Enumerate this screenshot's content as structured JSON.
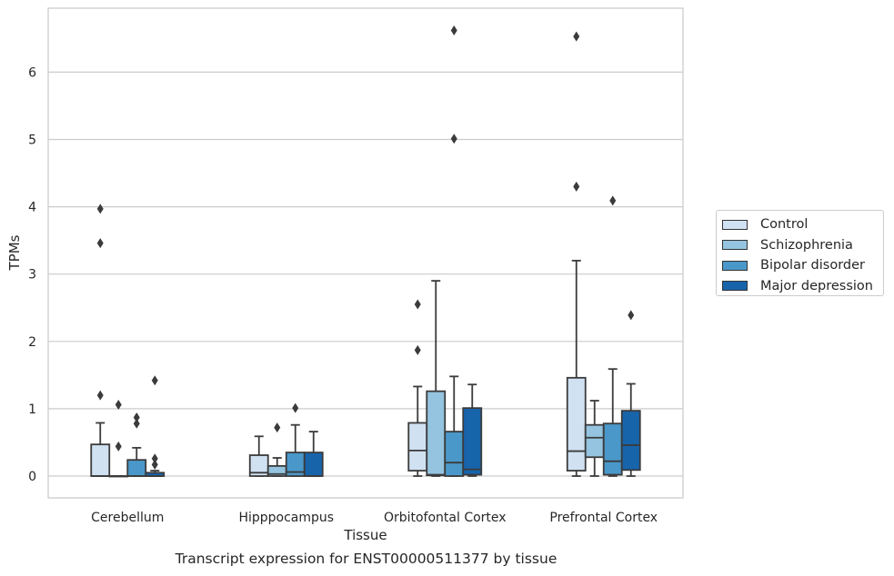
{
  "caption": "Transcript expression for ENST00000511377 by tissue",
  "chart_data": {
    "type": "boxplot",
    "xlabel": "Tissue",
    "ylabel": "TPMs",
    "ylim": [
      -0.32,
      6.95
    ],
    "yticks": [
      0,
      1,
      2,
      3,
      4,
      5,
      6
    ],
    "categories": [
      "Cerebellum",
      "Hipppocampus",
      "Orbitofontal Cortex",
      "Prefrontal Cortex"
    ],
    "grid": true,
    "legend_position": "right",
    "series": [
      {
        "name": "Control",
        "color": "#d0e1f2",
        "boxes": [
          {
            "whislo": 0,
            "q1": 0,
            "med": 0,
            "q3": 0.47,
            "whishi": 0.79,
            "fliers": [
              1.2,
              3.46,
              3.97
            ]
          },
          {
            "whislo": 0,
            "q1": 0,
            "med": 0.05,
            "q3": 0.31,
            "whishi": 0.59,
            "fliers": []
          },
          {
            "whislo": 0,
            "q1": 0.08,
            "med": 0.38,
            "q3": 0.79,
            "whishi": 1.33,
            "fliers": [
              1.87,
              2.55
            ]
          },
          {
            "whislo": 0,
            "q1": 0.08,
            "med": 0.37,
            "q3": 1.46,
            "whishi": 3.2,
            "fliers": [
              4.3,
              6.53
            ]
          }
        ]
      },
      {
        "name": "Schizophrenia",
        "color": "#94c4df",
        "boxes": [
          {
            "whislo": 0,
            "q1": 0,
            "med": 0,
            "q3": 0,
            "whishi": 0,
            "fliers": [
              0.44,
              1.06
            ]
          },
          {
            "whislo": 0,
            "q1": 0,
            "med": 0.03,
            "q3": 0.15,
            "whishi": 0.27,
            "fliers": [
              0.72
            ]
          },
          {
            "whislo": 0,
            "q1": 0.01,
            "med": 0.02,
            "q3": 1.26,
            "whishi": 2.9,
            "fliers": []
          },
          {
            "whislo": 0,
            "q1": 0.28,
            "med": 0.57,
            "q3": 0.76,
            "whishi": 1.12,
            "fliers": []
          }
        ]
      },
      {
        "name": "Bipolar disorder",
        "color": "#4a98c9",
        "boxes": [
          {
            "whislo": 0,
            "q1": 0,
            "med": 0,
            "q3": 0.24,
            "whishi": 0.42,
            "fliers": [
              0.78,
              0.87
            ]
          },
          {
            "whislo": 0,
            "q1": 0,
            "med": 0.06,
            "q3": 0.35,
            "whishi": 0.76,
            "fliers": [
              1.01
            ]
          },
          {
            "whislo": 0,
            "q1": 0,
            "med": 0.2,
            "q3": 0.66,
            "whishi": 1.48,
            "fliers": [
              5.01,
              6.62
            ]
          },
          {
            "whislo": 0,
            "q1": 0.02,
            "med": 0.22,
            "q3": 0.78,
            "whishi": 1.59,
            "fliers": [
              4.09
            ]
          }
        ]
      },
      {
        "name": "Major depression",
        "color": "#1764ab",
        "boxes": [
          {
            "whislo": 0,
            "q1": 0,
            "med": 0,
            "q3": 0.05,
            "whishi": 0.08,
            "fliers": [
              0.17,
              0.26,
              1.42
            ]
          },
          {
            "whislo": 0,
            "q1": 0,
            "med": 0,
            "q3": 0.35,
            "whishi": 0.66,
            "fliers": []
          },
          {
            "whislo": 0,
            "q1": 0.02,
            "med": 0.1,
            "q3": 1.01,
            "whishi": 1.36,
            "fliers": []
          },
          {
            "whislo": 0,
            "q1": 0.09,
            "med": 0.46,
            "q3": 0.97,
            "whishi": 1.37,
            "fliers": [
              2.39
            ]
          }
        ]
      }
    ]
  }
}
